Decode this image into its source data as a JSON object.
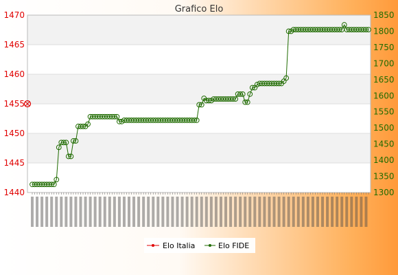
{
  "chart_data": {
    "type": "line",
    "title": "Grafico Elo",
    "y_left": {
      "ticks": [
        1440,
        1445,
        1450,
        1455,
        1460,
        1465,
        1470
      ],
      "range": [
        1440,
        1470
      ],
      "color": "#e00000"
    },
    "y_right": {
      "ticks": [
        1300,
        1350,
        1400,
        1450,
        1500,
        1550,
        1600,
        1650,
        1700,
        1750,
        1800,
        1850
      ],
      "range": [
        1300,
        1850
      ],
      "color": "#1f6b00"
    },
    "grid": true,
    "legend_position": "bottom",
    "x_labels_unreadable": true,
    "series": [
      {
        "name": "Elo Italia",
        "axis": "left",
        "color": "#e00000",
        "values": [
          1455
        ]
      },
      {
        "name": "Elo FIDE",
        "axis": "right",
        "color": "#1f6b00",
        "values": [
          1325,
          1325,
          1325,
          1325,
          1325,
          1325,
          1325,
          1325,
          1325,
          1325,
          1340,
          1440,
          1455,
          1455,
          1455,
          1412,
          1412,
          1460,
          1460,
          1505,
          1505,
          1505,
          1505,
          1512,
          1535,
          1535,
          1535,
          1535,
          1535,
          1535,
          1535,
          1535,
          1535,
          1535,
          1535,
          1535,
          1520,
          1520,
          1524,
          1524,
          1524,
          1524,
          1524,
          1524,
          1524,
          1524,
          1524,
          1524,
          1524,
          1524,
          1524,
          1524,
          1524,
          1524,
          1524,
          1524,
          1524,
          1524,
          1524,
          1524,
          1524,
          1524,
          1524,
          1524,
          1524,
          1524,
          1524,
          1524,
          1524,
          1572,
          1572,
          1592,
          1585,
          1585,
          1585,
          1590,
          1590,
          1590,
          1590,
          1590,
          1590,
          1590,
          1590,
          1590,
          1590,
          1605,
          1605,
          1605,
          1580,
          1580,
          1605,
          1625,
          1625,
          1635,
          1638,
          1638,
          1638,
          1638,
          1638,
          1638,
          1638,
          1638,
          1638,
          1638,
          1645,
          1655,
          1800,
          1800,
          1805,
          1805,
          1805,
          1805,
          1805,
          1805,
          1805,
          1805,
          1805,
          1805,
          1805,
          1805,
          1805,
          1805,
          1805,
          1805,
          1805,
          1805,
          1805,
          1805,
          1805,
          1820,
          1805,
          1805,
          1805,
          1805,
          1805,
          1805,
          1805,
          1805,
          1805,
          1805
        ]
      }
    ]
  }
}
